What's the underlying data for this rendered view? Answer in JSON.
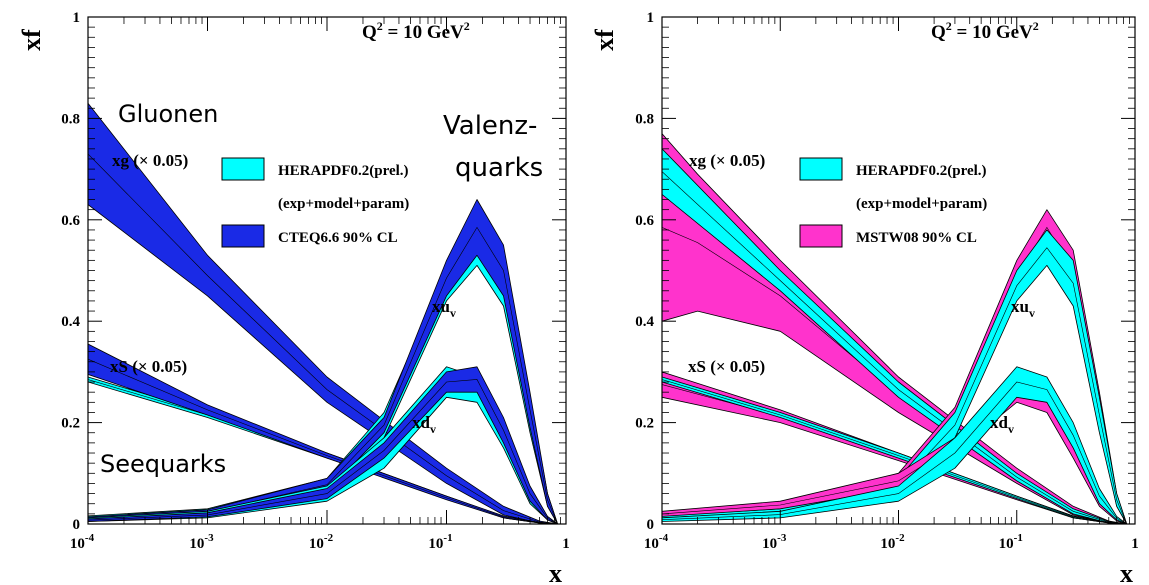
{
  "chart_data": [
    {
      "type": "area",
      "x_scale": "log",
      "xlim": [
        0.0001,
        1
      ],
      "ylim": [
        0,
        1
      ],
      "xlabel": "x",
      "ylabel": "xf",
      "x_ticks": [
        "10",
        "10",
        "10",
        "10",
        "1"
      ],
      "x_tick_exponents": [
        "-4",
        "-3",
        "-2",
        "-1",
        ""
      ],
      "y_ticks": [
        "0",
        "0.2",
        "0.4",
        "0.6",
        "0.8",
        "1"
      ],
      "q2_label": {
        "base": "Q",
        "exp": "2",
        "mid": " = 10 GeV",
        "exp2": "2"
      },
      "legend": [
        {
          "line1": "HERAPDF0.2(prel.)",
          "line2": "(exp+model+param)",
          "color": "#00ffff"
        },
        {
          "line1": "CTEQ6.6 90% CL",
          "color": "#1a2ae6"
        }
      ],
      "curve_labels": [
        {
          "text": "xg (× 0.05)"
        },
        {
          "text": "xS (× 0.05)"
        },
        {
          "text": "xu",
          "sub": "v"
        },
        {
          "text": "xd",
          "sub": "v"
        }
      ],
      "annotations": [
        "Gluonen",
        "Valenz-",
        "quarks",
        "Seequarks"
      ],
      "series": [
        {
          "name": "HERAPDF0.2(prel.)",
          "pdf": "xg (× 0.05)",
          "color": "#00ffff",
          "x": [
            0.0001,
            0.001,
            0.01,
            0.1,
            0.3,
            0.6,
            0.85
          ],
          "upper": [
            0.74,
            0.5,
            0.28,
            0.1,
            0.03,
            0.005,
            0.0
          ],
          "lower": [
            0.65,
            0.46,
            0.25,
            0.085,
            0.02,
            0.002,
            0.0
          ]
        },
        {
          "name": "CTEQ6.6 90% CL",
          "pdf": "xg (× 0.05)",
          "color": "#1a2ae6",
          "x": [
            0.0001,
            0.001,
            0.01,
            0.1,
            0.3,
            0.6,
            0.85
          ],
          "upper": [
            0.83,
            0.53,
            0.29,
            0.11,
            0.035,
            0.006,
            0.0
          ],
          "lower": [
            0.63,
            0.45,
            0.24,
            0.08,
            0.018,
            0.002,
            0.0
          ]
        },
        {
          "name": "HERAPDF0.2(prel.)",
          "pdf": "xS (× 0.05)",
          "color": "#00ffff",
          "x": [
            0.0001,
            0.001,
            0.01,
            0.1,
            0.3,
            0.6,
            0.85
          ],
          "upper": [
            0.29,
            0.22,
            0.14,
            0.055,
            0.015,
            0.003,
            0.0
          ],
          "lower": [
            0.28,
            0.21,
            0.13,
            0.05,
            0.012,
            0.002,
            0.0
          ]
        },
        {
          "name": "CTEQ6.6 90% CL",
          "pdf": "xS (× 0.05)",
          "color": "#1a2ae6",
          "x": [
            0.0001,
            0.001,
            0.01,
            0.1,
            0.3,
            0.6,
            0.85
          ],
          "upper": [
            0.355,
            0.235,
            0.14,
            0.055,
            0.016,
            0.003,
            0.0
          ],
          "lower": [
            0.295,
            0.215,
            0.13,
            0.048,
            0.012,
            0.002,
            0.0
          ]
        },
        {
          "name": "HERAPDF0.2(prel.)",
          "pdf": "xu_v",
          "color": "#00ffff",
          "x": [
            0.0001,
            0.001,
            0.01,
            0.03,
            0.1,
            0.18,
            0.3,
            0.5,
            0.7,
            0.85
          ],
          "upper": [
            0.016,
            0.03,
            0.09,
            0.22,
            0.5,
            0.58,
            0.52,
            0.25,
            0.06,
            0.0
          ],
          "lower": [
            0.009,
            0.018,
            0.06,
            0.17,
            0.44,
            0.51,
            0.43,
            0.18,
            0.035,
            0.0
          ]
        },
        {
          "name": "CTEQ6.6 90% CL",
          "pdf": "xu_v",
          "color": "#1a2ae6",
          "x": [
            0.0001,
            0.001,
            0.01,
            0.03,
            0.1,
            0.18,
            0.3,
            0.5,
            0.7,
            0.85
          ],
          "upper": [
            0.014,
            0.028,
            0.09,
            0.21,
            0.52,
            0.64,
            0.55,
            0.26,
            0.06,
            0.0
          ],
          "lower": [
            0.008,
            0.02,
            0.065,
            0.18,
            0.45,
            0.53,
            0.45,
            0.19,
            0.035,
            0.0
          ]
        },
        {
          "name": "HERAPDF0.2(prel.)",
          "pdf": "xd_v",
          "color": "#00ffff",
          "x": [
            0.0001,
            0.001,
            0.01,
            0.03,
            0.1,
            0.18,
            0.3,
            0.5,
            0.7,
            0.85
          ],
          "upper": [
            0.012,
            0.025,
            0.075,
            0.17,
            0.31,
            0.29,
            0.2,
            0.07,
            0.015,
            0.0
          ],
          "lower": [
            0.005,
            0.012,
            0.045,
            0.11,
            0.25,
            0.24,
            0.15,
            0.04,
            0.008,
            0.0
          ]
        },
        {
          "name": "CTEQ6.6 90% CL",
          "pdf": "xd_v",
          "color": "#1a2ae6",
          "x": [
            0.0001,
            0.001,
            0.01,
            0.03,
            0.1,
            0.18,
            0.3,
            0.5,
            0.7,
            0.85
          ],
          "upper": [
            0.01,
            0.022,
            0.07,
            0.16,
            0.3,
            0.31,
            0.21,
            0.075,
            0.015,
            0.0
          ],
          "lower": [
            0.005,
            0.014,
            0.05,
            0.13,
            0.26,
            0.26,
            0.16,
            0.045,
            0.008,
            0.0
          ]
        }
      ]
    },
    {
      "type": "area",
      "x_scale": "log",
      "xlim": [
        0.0001,
        1
      ],
      "ylim": [
        0,
        1
      ],
      "xlabel": "x",
      "ylabel": "xf",
      "x_ticks": [
        "10",
        "10",
        "10",
        "10",
        "1"
      ],
      "x_tick_exponents": [
        "-4",
        "-3",
        "-2",
        "-1",
        ""
      ],
      "y_ticks": [
        "0",
        "0.2",
        "0.4",
        "0.6",
        "0.8",
        "1"
      ],
      "q2_label": {
        "base": "Q",
        "exp": "2",
        "mid": " = 10 GeV",
        "exp2": "2"
      },
      "legend": [
        {
          "line1": "HERAPDF0.2(prel.)",
          "line2": "(exp+model+param)",
          "color": "#00ffff"
        },
        {
          "line1": "MSTW08 90% CL",
          "color": "#ff33cc"
        }
      ],
      "curve_labels": [
        {
          "text": "xg (× 0.05)"
        },
        {
          "text": "xS (× 0.05)"
        },
        {
          "text": "xu",
          "sub": "v"
        },
        {
          "text": "xd",
          "sub": "v"
        }
      ],
      "annotations": [],
      "series": [
        {
          "name": "MSTW08 90% CL",
          "pdf": "xg (× 0.05)",
          "color": "#ff33cc",
          "x": [
            0.0001,
            0.0002,
            0.001,
            0.01,
            0.1,
            0.3,
            0.6,
            0.85
          ],
          "upper": [
            0.77,
            0.69,
            0.52,
            0.29,
            0.11,
            0.035,
            0.006,
            0.0
          ],
          "lower": [
            0.4,
            0.42,
            0.38,
            0.22,
            0.08,
            0.018,
            0.002,
            0.0
          ]
        },
        {
          "name": "HERAPDF0.2(prel.)",
          "pdf": "xg (× 0.05)",
          "color": "#00ffff",
          "x": [
            0.0001,
            0.001,
            0.01,
            0.1,
            0.3,
            0.6,
            0.85
          ],
          "upper": [
            0.74,
            0.5,
            0.28,
            0.1,
            0.03,
            0.005,
            0.0
          ],
          "lower": [
            0.65,
            0.46,
            0.25,
            0.085,
            0.02,
            0.002,
            0.0
          ]
        },
        {
          "name": "MSTW08 90% CL",
          "pdf": "xS (× 0.05)",
          "color": "#ff33cc",
          "x": [
            0.0001,
            0.001,
            0.01,
            0.1,
            0.3,
            0.6,
            0.85
          ],
          "upper": [
            0.3,
            0.225,
            0.14,
            0.055,
            0.016,
            0.003,
            0.0
          ],
          "lower": [
            0.25,
            0.2,
            0.125,
            0.048,
            0.012,
            0.002,
            0.0
          ]
        },
        {
          "name": "HERAPDF0.2(prel.)",
          "pdf": "xS (× 0.05)",
          "color": "#00ffff",
          "x": [
            0.0001,
            0.001,
            0.01,
            0.1,
            0.3,
            0.6,
            0.85
          ],
          "upper": [
            0.29,
            0.22,
            0.14,
            0.055,
            0.015,
            0.003,
            0.0
          ],
          "lower": [
            0.28,
            0.21,
            0.13,
            0.05,
            0.012,
            0.002,
            0.0
          ]
        },
        {
          "name": "MSTW08 90% CL",
          "pdf": "xu_v",
          "color": "#ff33cc",
          "x": [
            0.0001,
            0.001,
            0.01,
            0.03,
            0.1,
            0.18,
            0.3,
            0.5,
            0.7,
            0.85
          ],
          "upper": [
            0.016,
            0.035,
            0.1,
            0.23,
            0.52,
            0.62,
            0.54,
            0.26,
            0.06,
            0.0
          ],
          "lower": [
            0.01,
            0.022,
            0.075,
            0.2,
            0.46,
            0.55,
            0.46,
            0.19,
            0.035,
            0.0
          ]
        },
        {
          "name": "HERAPDF0.2(prel.)",
          "pdf": "xu_v",
          "color": "#00ffff",
          "x": [
            0.0001,
            0.001,
            0.01,
            0.03,
            0.1,
            0.18,
            0.3,
            0.5,
            0.7,
            0.85
          ],
          "upper": [
            0.016,
            0.03,
            0.09,
            0.22,
            0.5,
            0.58,
            0.52,
            0.25,
            0.06,
            0.0
          ],
          "lower": [
            0.009,
            0.018,
            0.06,
            0.17,
            0.44,
            0.51,
            0.43,
            0.18,
            0.035,
            0.0
          ]
        },
        {
          "name": "MSTW08 90% CL",
          "pdf": "xd_v",
          "color": "#ff33cc",
          "x": [
            0.0001,
            0.001,
            0.01,
            0.03,
            0.1,
            0.18,
            0.3,
            0.5,
            0.7,
            0.85
          ],
          "upper": [
            0.025,
            0.045,
            0.1,
            0.17,
            0.28,
            0.26,
            0.17,
            0.06,
            0.012,
            0.0
          ],
          "lower": [
            0.015,
            0.03,
            0.07,
            0.14,
            0.24,
            0.22,
            0.13,
            0.035,
            0.006,
            0.0
          ]
        },
        {
          "name": "HERAPDF0.2(prel.)",
          "pdf": "xd_v",
          "color": "#00ffff",
          "x": [
            0.0001,
            0.001,
            0.01,
            0.03,
            0.1,
            0.18,
            0.3,
            0.5,
            0.7,
            0.85
          ],
          "upper": [
            0.012,
            0.025,
            0.075,
            0.17,
            0.31,
            0.29,
            0.2,
            0.07,
            0.015,
            0.0
          ],
          "lower": [
            0.005,
            0.012,
            0.045,
            0.11,
            0.25,
            0.24,
            0.15,
            0.04,
            0.008,
            0.0
          ]
        }
      ]
    }
  ]
}
